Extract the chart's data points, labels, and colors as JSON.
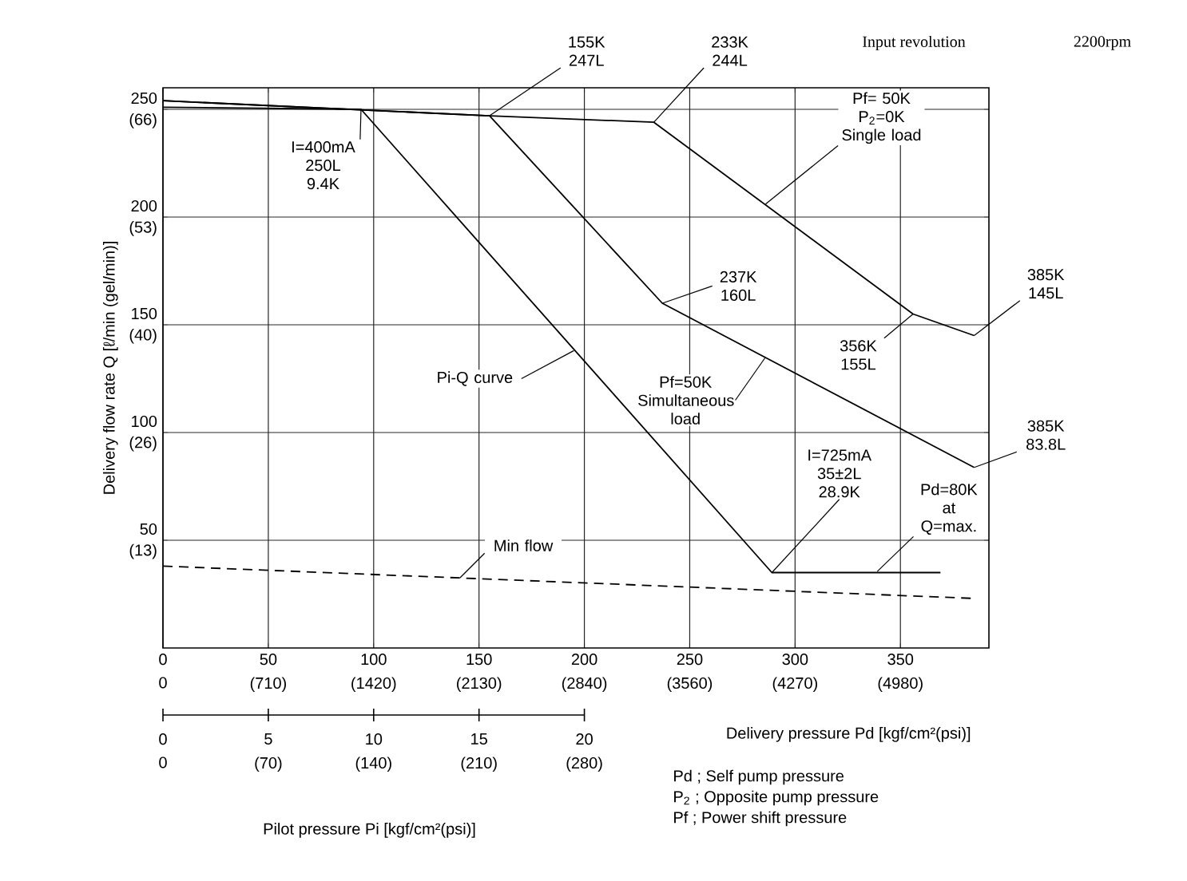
{
  "chart_data": {
    "type": "line",
    "xlabel": "Delivery pressure Pd [kgf/cm²(psi)]",
    "x2label": "Pilot pressure Pi [kgf/cm²(psi)]",
    "y2label": "Delivery flow rate Q [ℓ/min (gel/min)]",
    "xlim": [
      0,
      392
    ],
    "ylim": [
      0,
      260
    ],
    "x2lim": [
      0,
      39.2
    ],
    "y2lim": [
      0,
      68.68
    ],
    "y2ticks": [
      {
        "value": 13.2,
        "label": "(13)"
      },
      {
        "value": 26.4,
        "label": "(26)"
      },
      {
        "value": 39.6,
        "label": "(40)"
      },
      {
        "value": 52.8,
        "label": "(53)"
      },
      {
        "value": 66.0,
        "label": "(66)"
      }
    ],
    "xticks": [
      0,
      50,
      100,
      150,
      200,
      250,
      300,
      350
    ],
    "x2ticks": [
      0,
      5,
      10,
      15,
      20
    ],
    "yticks": [
      50,
      100,
      150,
      200,
      250
    ],
    "grid": true,
    "series": [
      {
        "color": "#000000",
        "x": [
          0,
          155,
          233,
          356,
          385
        ],
        "values": [
          254,
          247,
          244,
          155,
          145
        ]
      },
      {
        "color": "#000000",
        "x": [
          0,
          155,
          237,
          385
        ],
        "values": [
          254,
          247,
          160,
          83.8
        ]
      },
      {
        "color": "#000000",
        "axis": "x2",
        "x": [
          0,
          9.4,
          28.9,
          36.9
        ],
        "values": [
          251,
          250,
          35,
          35
        ]
      },
      {
        "color": "#000000",
        "line_style": "dashed",
        "x": [
          0,
          385
        ],
        "values": [
          38,
          23
        ]
      }
    ],
    "annotations": [
      {
        "text": "155K 247L",
        "x": 155,
        "y": 247
      },
      {
        "text": "233K 244L",
        "x": 233,
        "y": 244
      },
      {
        "text": "I=400mA 250L 9.4K",
        "x": 94,
        "y": 250
      },
      {
        "text": "Pf= 50K P$_{2}$=0K Single load",
        "x": 286,
        "y": 206
      },
      {
        "text": "237K 160L",
        "x": 237,
        "y": 160
      },
      {
        "text": "385K 145L",
        "x": 385,
        "y": 145
      },
      {
        "text": "356K 155L",
        "x": 356,
        "y": 155
      },
      {
        "text": "Pi-Q curve",
        "x": 195,
        "y": 138
      },
      {
        "text": "Pf=50K Simultaneous load",
        "x": 286,
        "y": 135
      },
      {
        "text": "385K 83.8L",
        "x": 385,
        "y": 83.8
      },
      {
        "text": "I=725mA 35±2L 28.9K",
        "x": 289,
        "y": 35
      },
      {
        "text": "Pd=80K at Q=max.",
        "x": 339,
        "y": 35.5
      },
      {
        "text": "Min flow",
        "x": 141,
        "y": 32.6
      },
      "Input revolution",
      "2200rpm",
      "Pd ; Self pump pressure",
      "P$_{2}$ ; Opposite pump pressure",
      "Pf ; Power shift pressure",
      "0",
      "(710)",
      "(1420)",
      "(2130)",
      "(2840)",
      "(3560)",
      "(4270)",
      "(4980)",
      "0",
      "(70)",
      "(140)",
      "(210)",
      "(280)"
    ]
  }
}
